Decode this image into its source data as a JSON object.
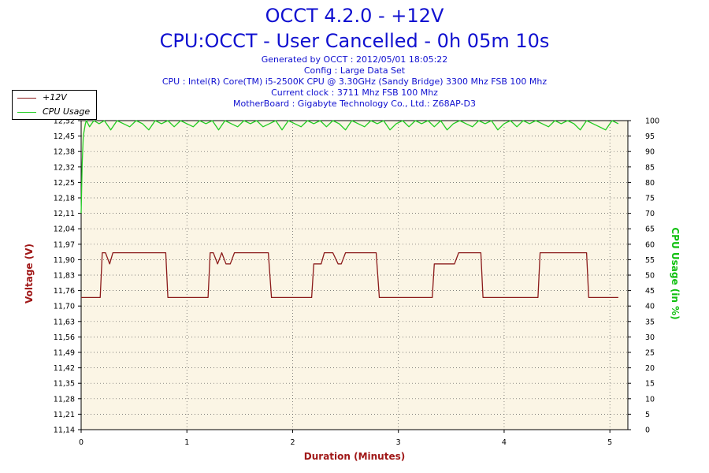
{
  "header": {
    "title": "OCCT 4.2.0 - +12V",
    "subtitle": "CPU:OCCT - User Cancelled - 0h 05m 10s",
    "generated": "Generated by OCCT : 2012/05/01 18:05:22",
    "config": "Config : Large Data Set",
    "cpu": "CPU : Intel(R) Core(TM) i5-2500K CPU @ 3.30GHz (Sandy Bridge) 3300 Mhz FSB 100 Mhz",
    "clock": "Current clock : 3711 Mhz FSB 100 Mhz",
    "motherboard": "MotherBoard : Gigabyte Technology Co., Ltd.: Z68AP-D3"
  },
  "legend": {
    "items": [
      {
        "label": "+12V",
        "color": "#8b1a1a"
      },
      {
        "label": "CPU Usage",
        "color": "#22cc22"
      }
    ]
  },
  "chart_data": {
    "type": "line",
    "xlabel": "Duration (Minutes)",
    "ylabel_left": "Voltage (V)",
    "ylabel_right": "CPU Usage (in %)",
    "xlim": [
      0,
      5.17
    ],
    "ylim_left": [
      11.14,
      12.52
    ],
    "ylim_right": [
      0,
      100
    ],
    "x_ticks": [
      "0",
      "1",
      "2",
      "3",
      "4",
      "5"
    ],
    "y_left_ticks": [
      "11,14",
      "11,21",
      "11,28",
      "11,35",
      "11,42",
      "11,49",
      "11,56",
      "11,63",
      "11,70",
      "11,76",
      "11,83",
      "11,90",
      "11,97",
      "12,04",
      "12,11",
      "12,18",
      "12,25",
      "12,32",
      "12,38",
      "12,45",
      "12,52"
    ],
    "y_right_ticks": [
      "0",
      "5",
      "10",
      "15",
      "20",
      "25",
      "30",
      "35",
      "40",
      "45",
      "50",
      "55",
      "60",
      "65",
      "70",
      "75",
      "80",
      "85",
      "90",
      "95",
      "100"
    ],
    "grid": true,
    "legend_position": "top-left",
    "series": [
      {
        "name": "+12V",
        "axis": "left",
        "color": "#8b1a1a",
        "x": [
          0,
          0.18,
          0.2,
          0.23,
          0.27,
          0.3,
          0.33,
          0.8,
          0.82,
          1.2,
          1.22,
          1.25,
          1.29,
          1.33,
          1.37,
          1.41,
          1.45,
          1.5,
          1.77,
          1.8,
          2.18,
          2.2,
          2.27,
          2.3,
          2.38,
          2.43,
          2.46,
          2.5,
          2.79,
          2.82,
          3.32,
          3.34,
          3.53,
          3.57,
          3.78,
          3.8,
          4.32,
          4.34,
          4.78,
          4.8,
          5.08
        ],
        "y": [
          11.73,
          11.73,
          11.93,
          11.93,
          11.88,
          11.93,
          11.93,
          11.93,
          11.73,
          11.73,
          11.93,
          11.93,
          11.88,
          11.93,
          11.88,
          11.88,
          11.93,
          11.93,
          11.93,
          11.73,
          11.73,
          11.88,
          11.88,
          11.93,
          11.93,
          11.88,
          11.88,
          11.93,
          11.93,
          11.73,
          11.73,
          11.88,
          11.88,
          11.93,
          11.93,
          11.73,
          11.73,
          11.93,
          11.93,
          11.73,
          11.73
        ]
      },
      {
        "name": "CPU Usage",
        "axis": "right",
        "color": "#22cc22",
        "x": [
          0,
          0.01,
          0.02,
          0.04,
          0.05,
          0.08,
          0.12,
          0.17,
          0.22,
          0.28,
          0.34,
          0.4,
          0.46,
          0.52,
          0.58,
          0.64,
          0.7,
          0.76,
          0.82,
          0.88,
          0.94,
          1.0,
          1.06,
          1.12,
          1.18,
          1.24,
          1.3,
          1.36,
          1.42,
          1.48,
          1.54,
          1.6,
          1.66,
          1.72,
          1.78,
          1.84,
          1.9,
          1.96,
          2.02,
          2.08,
          2.14,
          2.2,
          2.26,
          2.32,
          2.38,
          2.44,
          2.5,
          2.56,
          2.62,
          2.68,
          2.74,
          2.8,
          2.86,
          2.92,
          2.98,
          3.04,
          3.1,
          3.16,
          3.22,
          3.28,
          3.34,
          3.4,
          3.46,
          3.52,
          3.58,
          3.64,
          3.7,
          3.76,
          3.82,
          3.88,
          3.94,
          4.0,
          4.06,
          4.12,
          4.18,
          4.24,
          4.3,
          4.36,
          4.42,
          4.48,
          4.54,
          4.6,
          4.66,
          4.72,
          4.78,
          4.84,
          4.9,
          4.96,
          5.02,
          5.08
        ],
        "y": [
          70,
          86,
          95,
          99,
          100,
          98,
          100,
          99,
          100,
          97,
          100,
          99,
          98,
          100,
          99,
          97,
          100,
          99,
          100,
          98,
          100,
          99,
          98,
          100,
          99,
          100,
          97,
          100,
          99,
          98,
          100,
          99,
          100,
          98,
          99,
          100,
          97,
          100,
          99,
          98,
          100,
          99,
          100,
          98,
          100,
          99,
          97,
          100,
          99,
          98,
          100,
          99,
          100,
          97,
          99,
          100,
          98,
          100,
          99,
          100,
          98,
          100,
          97,
          99,
          100,
          99,
          98,
          100,
          99,
          100,
          97,
          99,
          100,
          98,
          100,
          99,
          100,
          99,
          98,
          100,
          99,
          100,
          99,
          97,
          100,
          99,
          98,
          97,
          100,
          99
        ]
      }
    ]
  }
}
